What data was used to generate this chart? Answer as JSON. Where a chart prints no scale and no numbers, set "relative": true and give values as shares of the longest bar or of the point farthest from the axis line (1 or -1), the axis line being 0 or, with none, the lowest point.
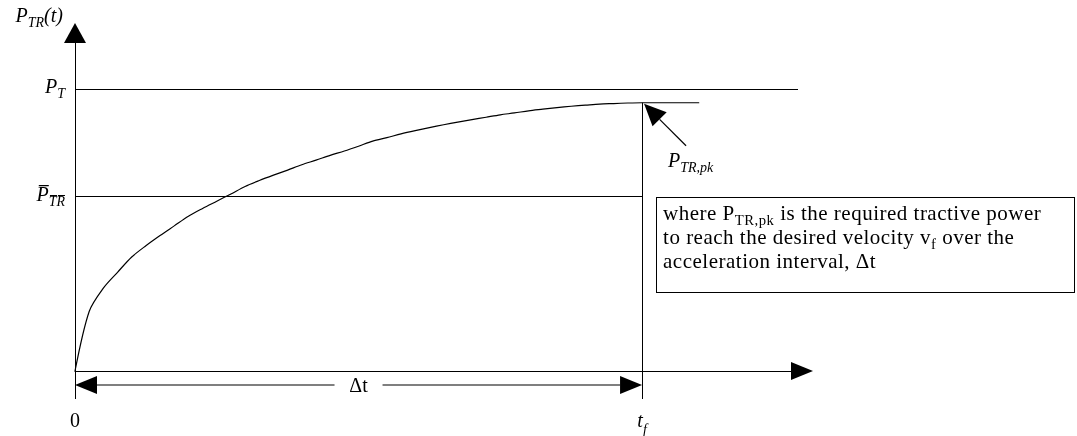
{
  "chart_data": {
    "type": "line",
    "ylabel": "P$_{TR}$(t)",
    "categories": [
      "0",
      null,
      null,
      null,
      null,
      null,
      null,
      null,
      null,
      null,
      null,
      null,
      null,
      null,
      null,
      null,
      null,
      null,
      null,
      null,
      null,
      null,
      null,
      null,
      null,
      null,
      null,
      null,
      null,
      null,
      null,
      null,
      null,
      null,
      null,
      null,
      null,
      null,
      null,
      null,
      "t$_{f}$",
      null,
      null,
      null,
      null,
      null,
      null,
      null,
      null,
      null,
      null,
      null
    ],
    "values": [
      0,
      0.222,
      0.309,
      0.368,
      0.425,
      0.467,
      0.505,
      0.541,
      0.577,
      0.606,
      0.633,
      0.66,
      0.688,
      0.71,
      0.73,
      0.749,
      0.769,
      0.786,
      0.804,
      0.82,
      0.838,
      0.857,
      0.87,
      0.884,
      0.896,
      0.907,
      0.918,
      0.928,
      0.937,
      0.946,
      0.955,
      0.962,
      0.97,
      0.976,
      0.982,
      0.987,
      0.991,
      0.995,
      0.997,
      0.999,
      1,
      1,
      1,
      1,
      1,
      null,
      null,
      null,
      null,
      null,
      null,
      null
    ],
    "color": "#000000",
    "relative": true,
    "ref_lines": [
      {
        "axis": "y",
        "value": 1.05,
        "label": "P$_{T}$",
        "color": "#000000"
      },
      {
        "axis": "y",
        "value": 0.65,
        "label": "P̅$_{T̅R̅}$",
        "color": "#000000"
      },
      {
        "axis": "x",
        "value": "t$_{f}$",
        "color": "#000000"
      }
    ],
    "annotations": [
      {
        "text": "P$_{TR,pk}$",
        "x": "t$_{f}$",
        "y": 1
      },
      "Δt",
      "where P$_{TR,pk}$ is the required tractive power to reach the desired velocity v$_{f}$ over the acceleration interval, Δt"
    ],
    "grid": false,
    "marker": "none"
  }
}
